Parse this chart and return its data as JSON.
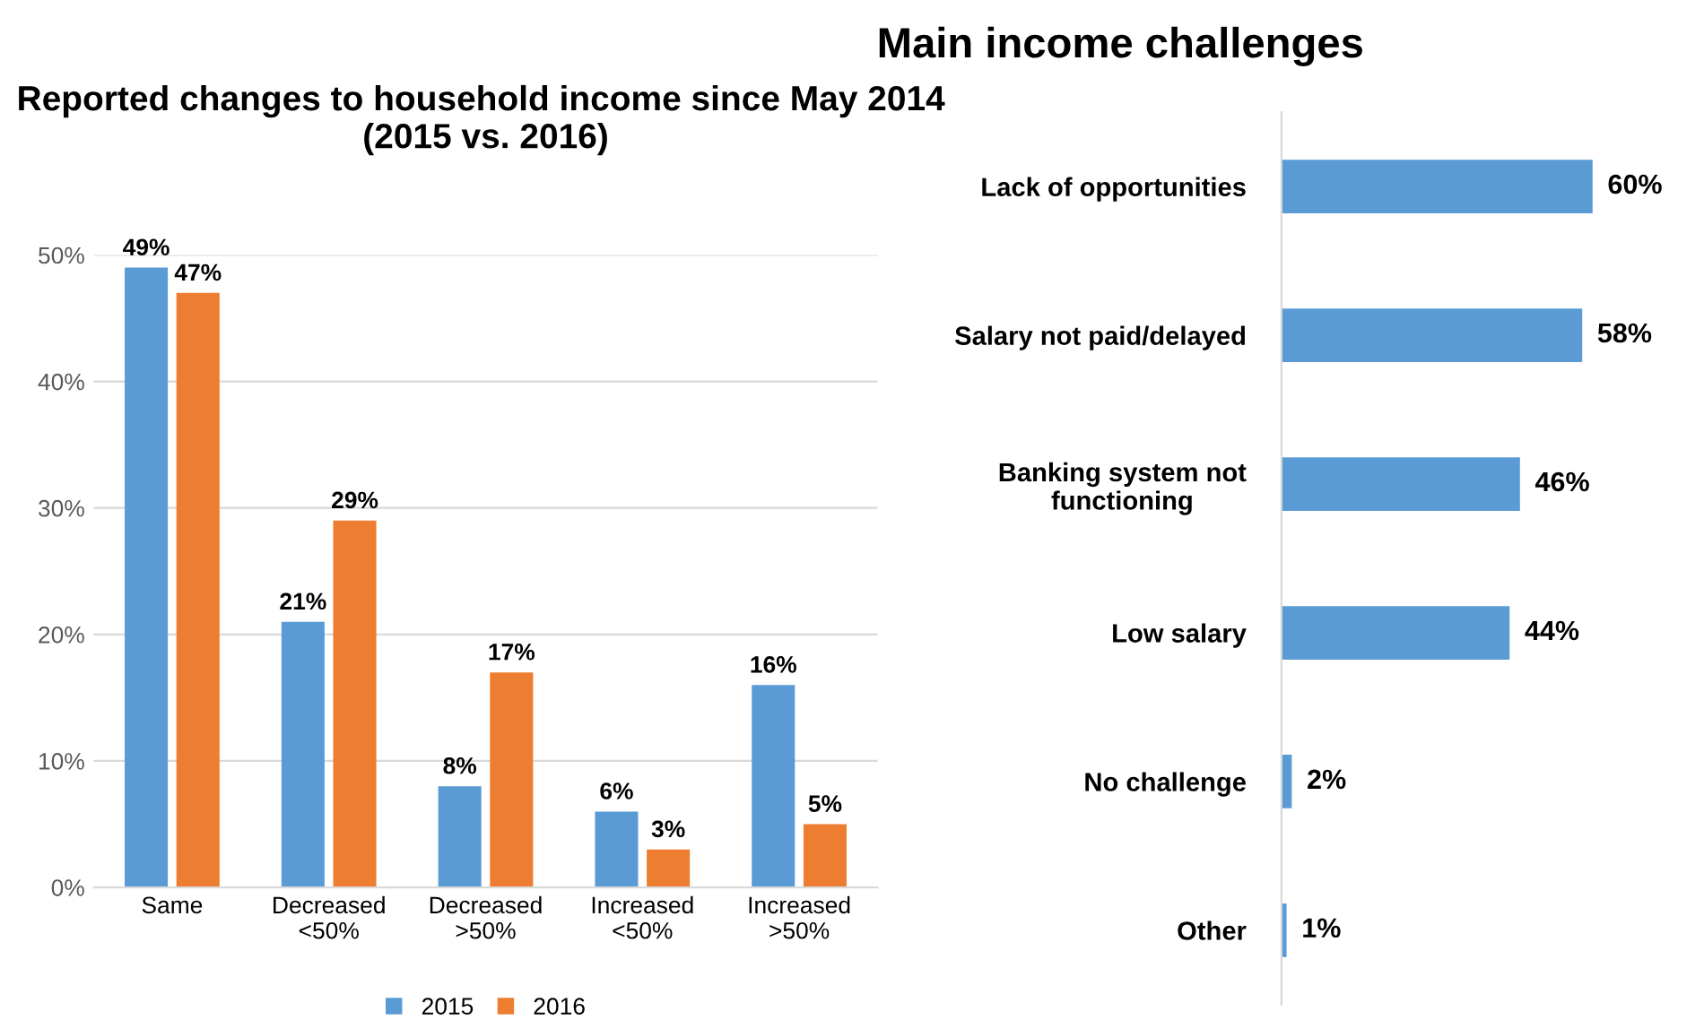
{
  "chart_data": [
    {
      "type": "bar",
      "title": "Reported changes to household income since May 2014  (2015 vs. 2016)",
      "categories": [
        "Same",
        "Decreased\n<50%",
        "Decreased\n>50%",
        "Increased\n<50%",
        "Increased\n>50%"
      ],
      "series": [
        {
          "name": "2015",
          "color": "#5b9bd5",
          "values": [
            49,
            21,
            8,
            6,
            16
          ],
          "value_labels": [
            "49%",
            "21%",
            "8%",
            "6%",
            "16%"
          ]
        },
        {
          "name": "2016",
          "color": "#ed7d31",
          "values": [
            47,
            29,
            17,
            3,
            5
          ],
          "value_labels": [
            "47%",
            "29%",
            "17%",
            "3%",
            "5%"
          ]
        }
      ],
      "ylim": [
        0,
        50
      ],
      "yticks": [
        {
          "value": 0,
          "label": "0%"
        },
        {
          "value": 10,
          "label": "10%"
        },
        {
          "value": 20,
          "label": "20%"
        },
        {
          "value": 30,
          "label": "30%"
        },
        {
          "value": 40,
          "label": "40%"
        },
        {
          "value": 50,
          "label": "50%"
        }
      ],
      "grid": "y",
      "legend": "bottom"
    },
    {
      "type": "bar",
      "orientation": "horizontal",
      "title": "Main income challenges",
      "categories": [
        "Lack of opportunities",
        "Salary not paid/delayed",
        "Banking system not\nfunctioning",
        "Low salary",
        "No challenge",
        "Other"
      ],
      "values": [
        60,
        58,
        46,
        44,
        2,
        1
      ],
      "value_labels": [
        "60%",
        "58%",
        "46%",
        "44%",
        "2%",
        "1%"
      ],
      "color": "#5b9bd5"
    }
  ]
}
